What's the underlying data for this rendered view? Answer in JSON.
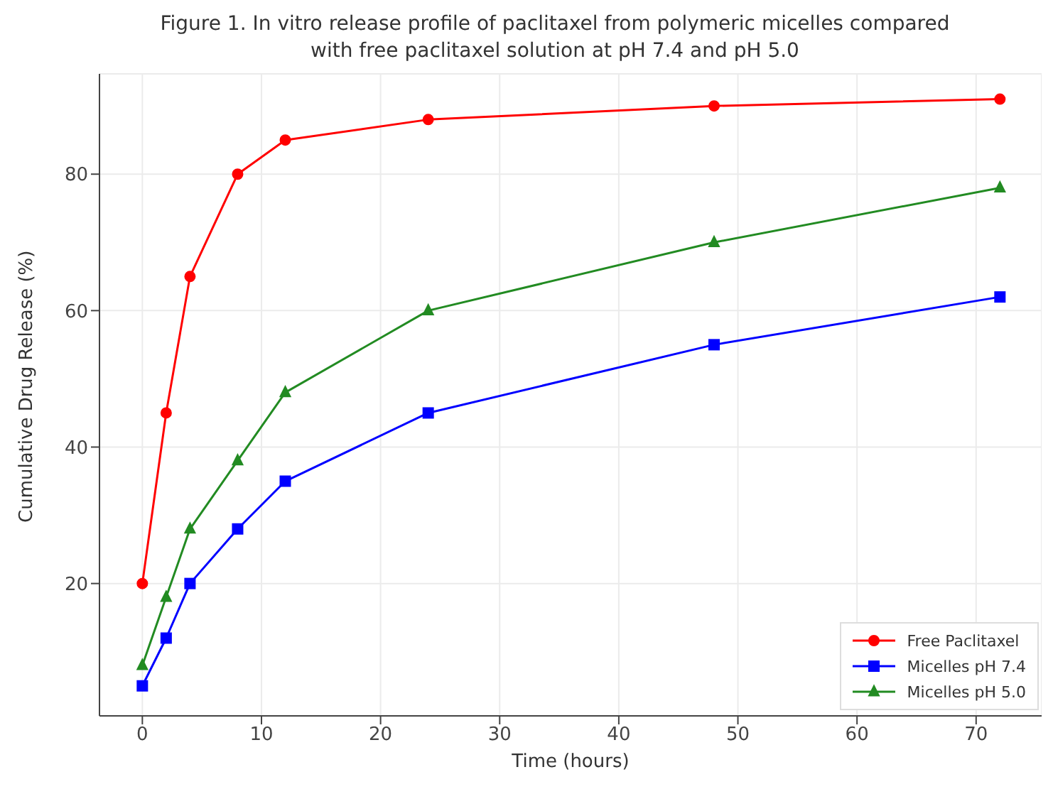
{
  "chart_data": {
    "type": "line",
    "title": "Figure 1. In vitro release profile of paclitaxel from polymeric micelles compared with free paclitaxel solution at pH 7.4 and pH 5.0",
    "xlabel": "Time (hours)",
    "ylabel": "Cumulative Drug Release (%)",
    "x": [
      0,
      2,
      4,
      8,
      12,
      24,
      48,
      72
    ],
    "series": [
      {
        "name": "Free Paclitaxel",
        "color": "#ff0000",
        "marker": "circle",
        "values": [
          20,
          45,
          65,
          80,
          85,
          88,
          90,
          91
        ]
      },
      {
        "name": "Micelles pH 7.4",
        "color": "#0000ff",
        "marker": "square",
        "values": [
          5,
          12,
          20,
          28,
          35,
          45,
          55,
          62
        ]
      },
      {
        "name": "Micelles pH 5.0",
        "color": "#228b22",
        "marker": "triangle",
        "values": [
          8,
          18,
          28,
          38,
          48,
          60,
          70,
          78
        ]
      }
    ],
    "xlim": [
      -3.6,
      75.5
    ],
    "xticks": [
      0,
      10,
      20,
      30,
      40,
      50,
      60,
      70
    ],
    "ylim": [
      0.6,
      94.7
    ],
    "yticks": [
      20,
      40,
      60,
      80
    ],
    "grid": true,
    "legend": "bottom right"
  }
}
